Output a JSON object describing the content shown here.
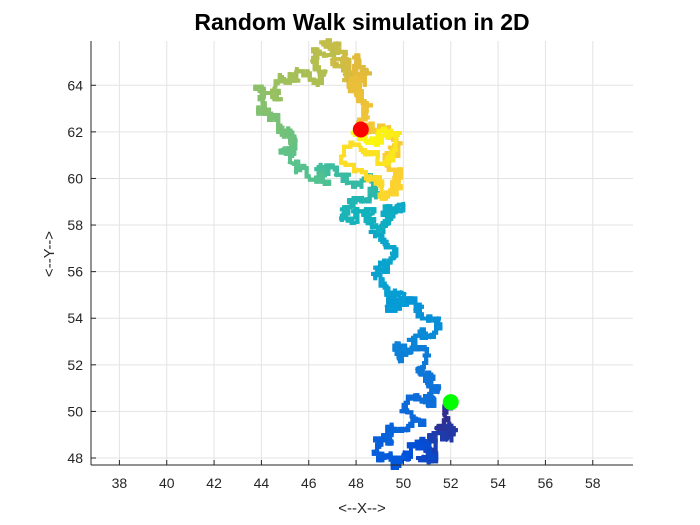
{
  "chart_data": {
    "type": "line",
    "title": "Random Walk simulation in 2D",
    "xlabel": "<--X-->",
    "ylabel": "<--Y-->",
    "xlim": [
      36.8,
      59.7
    ],
    "ylim": [
      47.7,
      65.9
    ],
    "xticks": [
      38,
      40,
      42,
      44,
      46,
      48,
      50,
      52,
      54,
      56,
      58
    ],
    "yticks": [
      48,
      50,
      52,
      54,
      56,
      58,
      60,
      62,
      64
    ],
    "grid": true,
    "colormap": "parula",
    "path_waypoints": {
      "x": [
        52.0,
        51.8,
        51.4,
        51.9,
        51.2,
        50.8,
        51.3,
        51.1,
        50.5,
        50.0,
        49.2,
        48.8,
        49.5,
        50.2,
        50.7,
        50.1,
        50.5,
        51.0,
        51.5,
        51.0,
        50.6,
        50.9,
        50.3,
        49.8,
        50.5,
        51.2,
        51.5,
        50.6,
        49.9,
        49.4,
        50.0,
        49.3,
        48.9,
        49.1,
        49.7,
        49.2,
        48.8,
        49.4,
        49.8,
        49.9,
        49.3,
        48.6,
        48.0,
        47.4,
        47.8,
        48.3,
        48.9,
        48.5,
        47.7,
        47.1,
        46.5,
        46.0,
        45.3,
        44.9,
        45.4,
        44.8,
        44.5,
        44.1,
        44.6,
        45.2,
        45.5,
        46.2,
        46.7,
        46.1,
        46.8,
        47.2,
        47.6,
        47.0,
        47.5,
        48.0,
        48.5,
        48.1,
        47.8,
        48.0,
        48.4,
        48.1,
        48.7,
        49.3,
        49.7,
        49.2,
        49.8,
        49.1,
        48.6,
        48.0,
        47.4,
        48.2,
        48.9,
        49.4,
        49.0,
        48.4,
        48.2
      ],
      "y": [
        50.4,
        49.8,
        49.2,
        48.8,
        48.4,
        48.0,
        48.1,
        48.7,
        48.5,
        48.2,
        48.0,
        48.3,
        48.8,
        49.2,
        49.6,
        50.1,
        50.6,
        50.3,
        50.9,
        51.4,
        51.9,
        52.4,
        52.7,
        52.2,
        52.8,
        53.2,
        53.9,
        54.4,
        54.8,
        54.5,
        55.1,
        55.4,
        55.9,
        56.3,
        56.6,
        57.1,
        57.7,
        58.1,
        58.6,
        58.9,
        58.8,
        58.5,
        58.1,
        58.4,
        58.8,
        59.1,
        59.6,
        60.0,
        59.8,
        60.2,
        60.4,
        60.0,
        60.7,
        61.2,
        61.7,
        62.0,
        62.6,
        63.4,
        63.9,
        64.2,
        64.6,
        64.1,
        64.5,
        65.0,
        65.3,
        65.7,
        65.3,
        65.0,
        64.4,
        64.2,
        64.6,
        65.1,
        64.2,
        63.5,
        62.8,
        62.4,
        62.0,
        62.2,
        61.6,
        61.0,
        60.3,
        59.6,
        60.0,
        60.4,
        61.0,
        61.4,
        60.9,
        60.6,
        61.9,
        61.6,
        62.1
      ]
    },
    "start_point": {
      "x": 52.0,
      "y": 50.4,
      "color": "#00ff00"
    },
    "end_point": {
      "x": 48.2,
      "y": 62.1,
      "color": "#ff0000"
    },
    "colors": {
      "grid": "#e3e3e3",
      "axis": "#262626",
      "title": "#000000"
    }
  }
}
